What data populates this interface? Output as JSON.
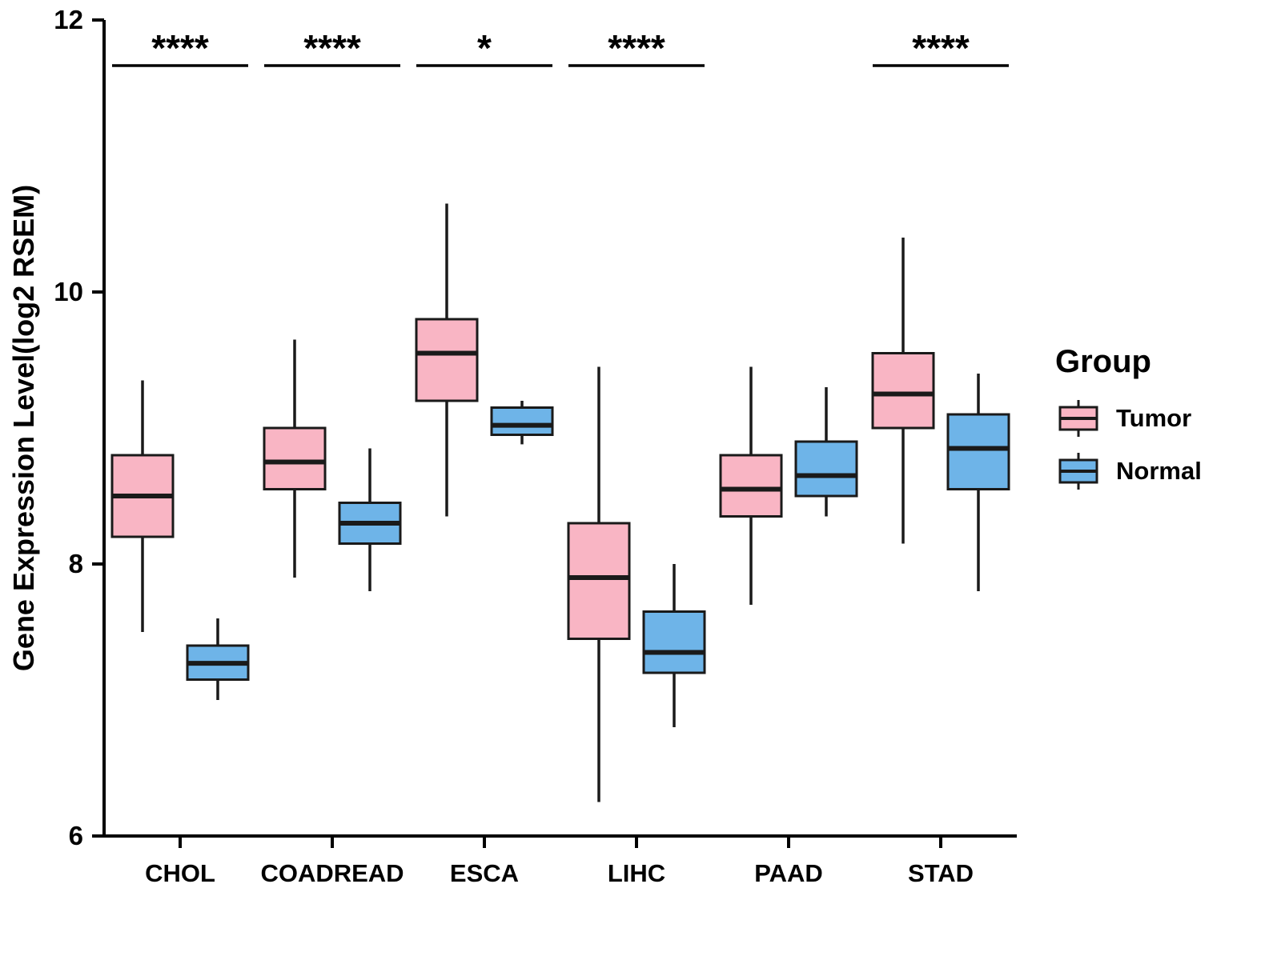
{
  "chart_data": {
    "type": "boxplot",
    "title": "",
    "ylabel": "Gene Expression Level(log2 RSEM)",
    "xlabel": "",
    "ylim": [
      6,
      12
    ],
    "yticks": [
      6,
      8,
      10,
      12
    ],
    "grid": false,
    "categories": [
      "CHOL",
      "COADREAD",
      "ESCA",
      "LIHC",
      "PAAD",
      "STAD"
    ],
    "legend": {
      "title": "Group",
      "position": "right",
      "entries": [
        {
          "label": "Tumor",
          "color": "#F9B5C4"
        },
        {
          "label": "Normal",
          "color": "#6EB4E8"
        }
      ]
    },
    "series": [
      {
        "name": "Tumor",
        "color": "#F9B5C4",
        "boxes": [
          {
            "category": "CHOL",
            "whisker_low": 7.5,
            "q1": 8.2,
            "median": 8.5,
            "q3": 8.8,
            "whisker_high": 9.35
          },
          {
            "category": "COADREAD",
            "whisker_low": 7.9,
            "q1": 8.55,
            "median": 8.75,
            "q3": 9.0,
            "whisker_high": 9.65
          },
          {
            "category": "ESCA",
            "whisker_low": 8.35,
            "q1": 9.2,
            "median": 9.55,
            "q3": 9.8,
            "whisker_high": 10.65
          },
          {
            "category": "LIHC",
            "whisker_low": 6.25,
            "q1": 7.45,
            "median": 7.9,
            "q3": 8.3,
            "whisker_high": 9.45
          },
          {
            "category": "PAAD",
            "whisker_low": 7.7,
            "q1": 8.35,
            "median": 8.55,
            "q3": 8.8,
            "whisker_high": 9.45
          },
          {
            "category": "STAD",
            "whisker_low": 8.15,
            "q1": 9.0,
            "median": 9.25,
            "q3": 9.55,
            "whisker_high": 10.4
          }
        ]
      },
      {
        "name": "Normal",
        "color": "#6EB4E8",
        "boxes": [
          {
            "category": "CHOL",
            "whisker_low": 7.0,
            "q1": 7.15,
            "median": 7.27,
            "q3": 7.4,
            "whisker_high": 7.6
          },
          {
            "category": "COADREAD",
            "whisker_low": 7.8,
            "q1": 8.15,
            "median": 8.3,
            "q3": 8.45,
            "whisker_high": 8.85
          },
          {
            "category": "ESCA",
            "whisker_low": 8.88,
            "q1": 8.95,
            "median": 9.02,
            "q3": 9.15,
            "whisker_high": 9.2
          },
          {
            "category": "LIHC",
            "whisker_low": 6.8,
            "q1": 7.2,
            "median": 7.35,
            "q3": 7.65,
            "whisker_high": 8.0
          },
          {
            "category": "PAAD",
            "whisker_low": 8.35,
            "q1": 8.5,
            "median": 8.65,
            "q3": 8.9,
            "whisker_high": 9.3
          },
          {
            "category": "STAD",
            "whisker_low": 7.8,
            "q1": 8.55,
            "median": 8.85,
            "q3": 9.1,
            "whisker_high": 9.4
          }
        ]
      }
    ],
    "significance": [
      {
        "category": "CHOL",
        "label": "****"
      },
      {
        "category": "COADREAD",
        "label": "****"
      },
      {
        "category": "ESCA",
        "label": "*"
      },
      {
        "category": "LIHC",
        "label": "****"
      },
      {
        "category": "STAD",
        "label": "****"
      }
    ]
  }
}
